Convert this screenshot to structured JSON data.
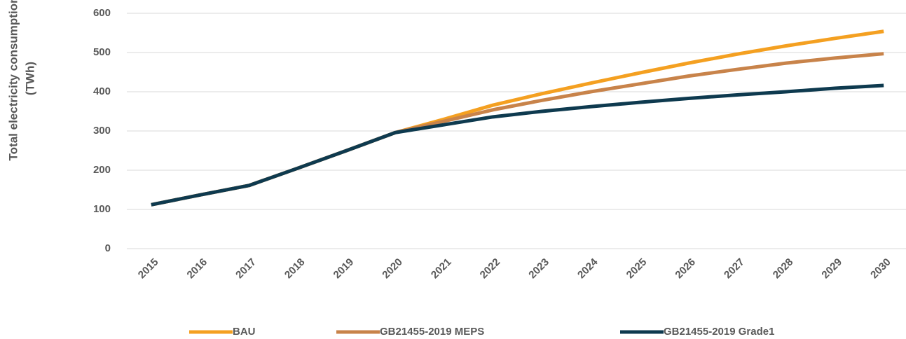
{
  "chart_data": {
    "type": "line",
    "ylabel": [
      "Total electricity consumption",
      "(TWh)"
    ],
    "categories": [
      "2015",
      "2016",
      "2017",
      "2018",
      "2019",
      "2020",
      "2021",
      "2022",
      "2023",
      "2024",
      "2025",
      "2026",
      "2027",
      "2028",
      "2029",
      "2030"
    ],
    "series": [
      {
        "name": "BAU",
        "color": "#f4a021",
        "values": [
          112,
          137,
          161,
          205,
          250,
          296,
          330,
          366,
          395,
          422,
          448,
          473,
          496,
          517,
          536,
          554
        ]
      },
      {
        "name": "GB21455-2019 MEPS",
        "color": "#c8834a",
        "values": [
          112,
          137,
          161,
          205,
          250,
          296,
          325,
          354,
          378,
          400,
          420,
          440,
          457,
          473,
          486,
          497
        ]
      },
      {
        "name": "GB21455-2019 Grade1",
        "color": "#0e3a4f",
        "values": [
          112,
          137,
          161,
          205,
          250,
          296,
          316,
          336,
          350,
          362,
          373,
          383,
          392,
          400,
          409,
          416
        ]
      }
    ],
    "ylim": [
      0,
      600
    ],
    "yticks": [
      0,
      100,
      200,
      300,
      400,
      500,
      600
    ],
    "grid": true,
    "legend": "bottom"
  }
}
